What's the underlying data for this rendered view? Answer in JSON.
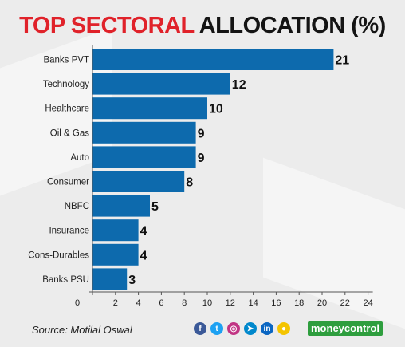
{
  "header": {
    "title_red": "TOP SECTORAL",
    "title_dark": "ALLOCATION (%)"
  },
  "chart_data": {
    "type": "bar",
    "orientation": "horizontal",
    "categories": [
      "Banks PVT",
      "Technology",
      "Healthcare",
      "Oil & Gas",
      "Auto",
      "Consumer",
      "NBFC",
      "Insurance",
      "Cons-Durables",
      "Banks PSU"
    ],
    "values": [
      21,
      12,
      10,
      9,
      9,
      8,
      5,
      4,
      4,
      3
    ],
    "xlim": [
      0,
      24
    ],
    "xticks": [
      0,
      2,
      4,
      6,
      8,
      10,
      12,
      14,
      16,
      18,
      20,
      22,
      24
    ],
    "bar_color": "#0d6aad",
    "grid": false
  },
  "footer": {
    "source": "Source: Motilal Oswal",
    "brand": "moneycontrol",
    "social_icons": [
      {
        "name": "facebook-icon",
        "glyph": "f",
        "color": "#3b5998"
      },
      {
        "name": "twitter-icon",
        "glyph": "t",
        "color": "#1da1f2"
      },
      {
        "name": "instagram-icon",
        "glyph": "◎",
        "color": "#c13584"
      },
      {
        "name": "telegram-icon",
        "glyph": "➤",
        "color": "#0088cc"
      },
      {
        "name": "linkedin-icon",
        "glyph": "in",
        "color": "#0a66c2"
      },
      {
        "name": "koo-icon",
        "glyph": "●",
        "color": "#f4c400"
      }
    ],
    "brand_color": "#2e9e3e"
  }
}
